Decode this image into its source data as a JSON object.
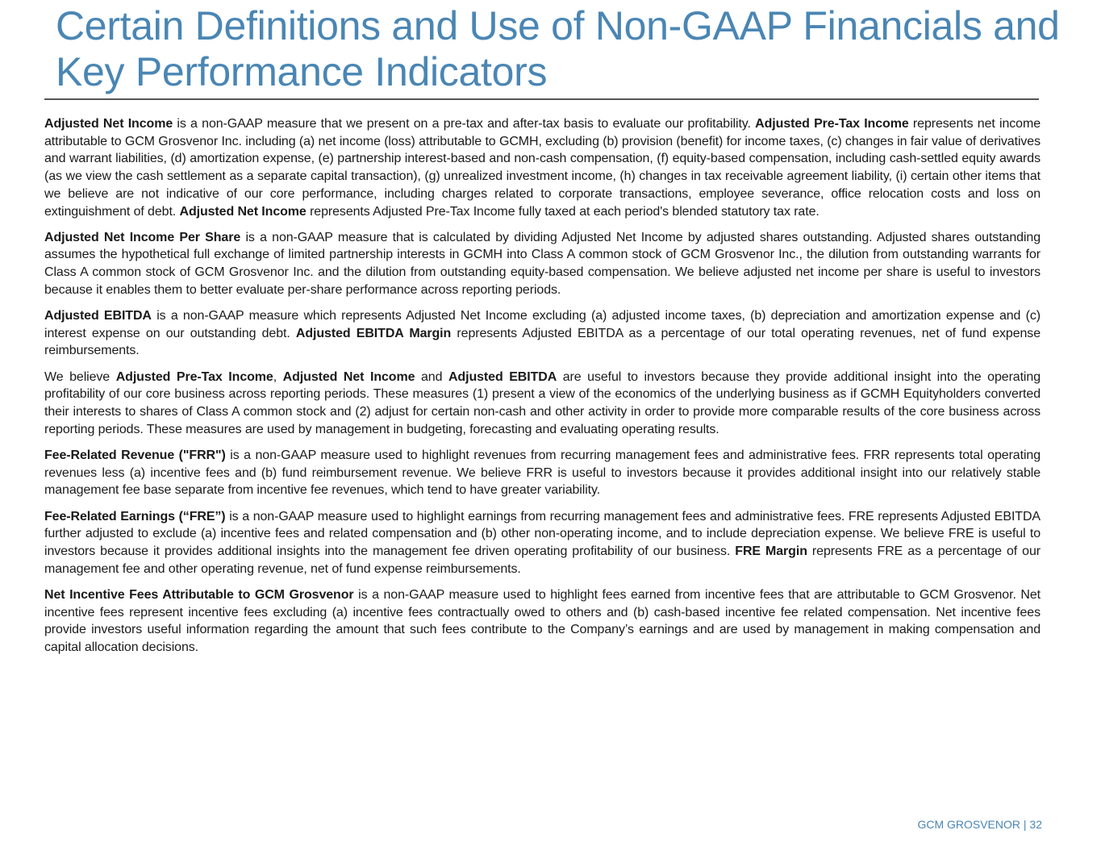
{
  "title": "Certain Definitions and Use of Non-GAAP Financials and Key Performance Indicators",
  "paragraphs": [
    [
      {
        "b": true,
        "t": "Adjusted Net Income"
      },
      {
        "b": false,
        "t": " is a non-GAAP measure that we present on a pre-tax and after-tax basis to evaluate our profitability. "
      },
      {
        "b": true,
        "t": "Adjusted Pre-Tax Income"
      },
      {
        "b": false,
        "t": " represents net income attributable to GCM Grosvenor Inc. including (a) net income (loss) attributable to GCMH, excluding (b) provision (benefit) for income taxes, (c) changes in fair value of derivatives and warrant liabilities, (d) amortization expense, (e) partnership interest-based and non-cash compensation, (f) equity-based compensation, including cash-settled equity awards (as we view the cash settlement as a separate capital transaction), (g) unrealized investment income, (h) changes in tax receivable agreement liability, (i) certain other items that we believe are not indicative of our core performance, including charges related to corporate transactions, employee severance, office relocation costs and loss on extinguishment of debt. "
      },
      {
        "b": true,
        "t": "Adjusted Net Income"
      },
      {
        "b": false,
        "t": " represents Adjusted Pre-Tax Income fully taxed at each period's blended statutory tax rate."
      }
    ],
    [
      {
        "b": true,
        "t": "Adjusted Net Income Per Share"
      },
      {
        "b": false,
        "t": " is a non-GAAP measure that is calculated by dividing Adjusted Net Income by adjusted shares outstanding. Adjusted shares outstanding assumes the hypothetical full exchange of limited partnership interests in GCMH into Class A common stock of GCM Grosvenor Inc., the dilution from outstanding warrants for Class A common stock of GCM Grosvenor Inc. and the dilution from outstanding equity-based compensation. We believe adjusted net income per share is useful to investors because it enables them to better evaluate per-share performance across reporting periods."
      }
    ],
    [
      {
        "b": true,
        "t": "Adjusted EBITDA"
      },
      {
        "b": false,
        "t": " is a non-GAAP measure which represents Adjusted Net Income excluding (a) adjusted income taxes, (b) depreciation and amortization expense and (c) interest expense on our outstanding debt.  "
      },
      {
        "b": true,
        "t": "Adjusted EBITDA Margin"
      },
      {
        "b": false,
        "t": " represents Adjusted EBITDA as a percentage of our total operating revenues, net of fund expense reimbursements."
      }
    ],
    [
      {
        "b": false,
        "t": "We believe "
      },
      {
        "b": true,
        "t": "Adjusted Pre-Tax Income"
      },
      {
        "b": false,
        "t": ", "
      },
      {
        "b": true,
        "t": "Adjusted Net Income"
      },
      {
        "b": false,
        "t": " and "
      },
      {
        "b": true,
        "t": "Adjusted EBITDA"
      },
      {
        "b": false,
        "t": " are useful to investors because they provide additional insight into the operating profitability of our core business across reporting periods. These measures (1) present a view of the economics of the underlying business as if GCMH Equityholders converted their interests to shares of Class A common stock and (2) adjust for certain non-cash and other activity in order to provide more comparable results of the core business across reporting periods. These measures are used by management in budgeting, forecasting and evaluating operating results."
      }
    ],
    [
      {
        "b": true,
        "t": "Fee-Related Revenue (\"FRR\")"
      },
      {
        "b": false,
        "t": " is a non-GAAP measure used to highlight revenues from recurring management fees and administrative fees. FRR represents total operating revenues less (a) incentive fees and (b) fund reimbursement revenue. We believe FRR is useful to investors because it provides additional insight into our relatively stable management fee base separate from incentive fee revenues, which tend to have greater variability."
      }
    ],
    [
      {
        "b": true,
        "t": "Fee-Related Earnings (“FRE”)"
      },
      {
        "b": false,
        "t": " is a non-GAAP measure used to highlight earnings from recurring management fees and administrative fees. FRE represents Adjusted EBITDA further adjusted to exclude (a) incentive fees and related compensation and (b) other non-operating income, and to include depreciation expense. We believe FRE is useful to investors because it provides additional insights into the management fee driven operating profitability of our business. "
      },
      {
        "b": true,
        "t": "FRE Margin"
      },
      {
        "b": false,
        "t": " represents FRE as a percentage of our management fee and other operating revenue, net of fund expense reimbursements."
      }
    ],
    [
      {
        "b": true,
        "t": "Net Incentive Fees Attributable to GCM Grosvenor"
      },
      {
        "b": false,
        "t": " is a non-GAAP measure used to highlight fees earned from incentive fees that are attributable to GCM Grosvenor. Net incentive fees represent incentive fees excluding (a) incentive fees contractually owed to others and (b) cash-based incentive fee related compensation. Net incentive fees provide investors useful information regarding the amount that such fees contribute to the Company’s earnings and are used by management in making compensation and capital allocation decisions."
      }
    ]
  ],
  "footer": "GCM GROSVENOR | 32",
  "colors": {
    "accent": "#4a86b4",
    "rule": "#555555"
  }
}
